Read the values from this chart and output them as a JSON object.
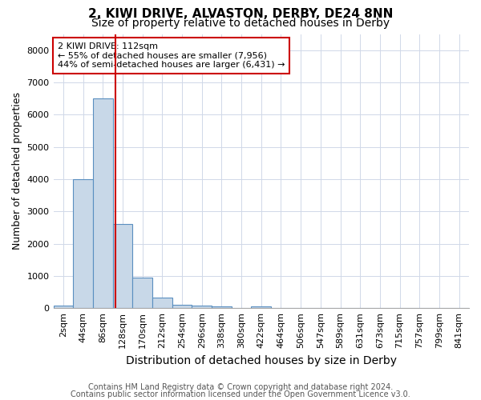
{
  "title1": "2, KIWI DRIVE, ALVASTON, DERBY, DE24 8NN",
  "title2": "Size of property relative to detached houses in Derby",
  "xlabel": "Distribution of detached houses by size in Derby",
  "ylabel": "Number of detached properties",
  "bin_labels": [
    "2sqm",
    "44sqm",
    "86sqm",
    "128sqm",
    "170sqm",
    "212sqm",
    "254sqm",
    "296sqm",
    "338sqm",
    "380sqm",
    "422sqm",
    "464sqm",
    "506sqm",
    "547sqm",
    "589sqm",
    "631sqm",
    "673sqm",
    "715sqm",
    "757sqm",
    "799sqm",
    "841sqm"
  ],
  "bar_heights": [
    75,
    4000,
    6500,
    2600,
    950,
    320,
    110,
    75,
    50,
    0,
    50,
    0,
    0,
    0,
    0,
    0,
    0,
    0,
    0,
    0,
    0
  ],
  "bar_color": "#c8d8e8",
  "bar_edge_color": "#5a8fc0",
  "ylim": [
    0,
    8500
  ],
  "yticks": [
    0,
    1000,
    2000,
    3000,
    4000,
    5000,
    6000,
    7000,
    8000
  ],
  "vline_x": 2.62,
  "vline_color": "#cc0000",
  "annotation_text": "2 KIWI DRIVE: 112sqm\n← 55% of detached houses are smaller (7,956)\n44% of semi-detached houses are larger (6,431) →",
  "annotation_box_color": "#cc0000",
  "footer1": "Contains HM Land Registry data © Crown copyright and database right 2024.",
  "footer2": "Contains public sector information licensed under the Open Government Licence v3.0.",
  "grid_color": "#d0d8e8",
  "title1_fontsize": 11,
  "title2_fontsize": 10,
  "xlabel_fontsize": 10,
  "ylabel_fontsize": 9,
  "tick_fontsize": 8,
  "annotation_fontsize": 8,
  "footer_fontsize": 7
}
